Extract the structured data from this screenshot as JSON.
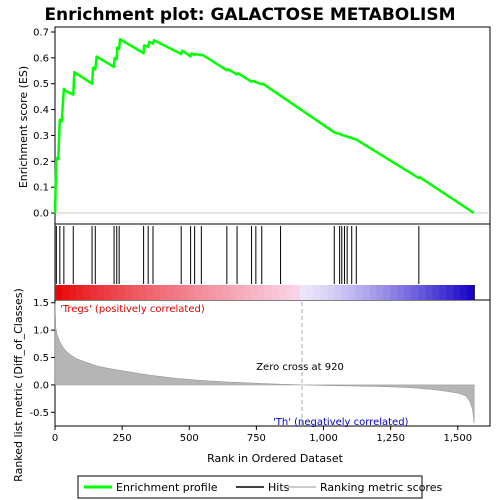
{
  "chart_data": {
    "type": "line",
    "title": "Enrichment plot: GALACTOSE METABOLISM",
    "enrichment_panel": {
      "ylabel": "Enrichment score (ES)",
      "ylim": [
        0.0,
        0.7
      ],
      "yticks": [
        0.0,
        0.1,
        0.2,
        0.3,
        0.4,
        0.5,
        0.6,
        0.7
      ],
      "series": [
        {
          "name": "Enrichment profile",
          "color": "#00ff00",
          "x": [
            0,
            5,
            12,
            18,
            25,
            33,
            40,
            68,
            72,
            138,
            142,
            150,
            155,
            220,
            222,
            230,
            232,
            239,
            242,
            330,
            332,
            347,
            351,
            365,
            369,
            470,
            474,
            505,
            509,
            520,
            524,
            545,
            549,
            640,
            644,
            678,
            682,
            732,
            736,
            748,
            752,
            770,
            774,
            1040,
            1044,
            1060,
            1068,
            1078,
            1088,
            1105,
            1122,
            1355,
            1359,
            1560
          ],
          "y": [
            0.0,
            0.212,
            0.208,
            0.36,
            0.355,
            0.48,
            0.472,
            0.458,
            0.545,
            0.5,
            0.562,
            0.556,
            0.605,
            0.565,
            0.6,
            0.595,
            0.64,
            0.635,
            0.672,
            0.618,
            0.648,
            0.643,
            0.662,
            0.655,
            0.668,
            0.615,
            0.628,
            0.606,
            0.617,
            0.611,
            0.615,
            0.61,
            0.612,
            0.552,
            0.556,
            0.536,
            0.54,
            0.508,
            0.511,
            0.506,
            0.505,
            0.498,
            0.5,
            0.312,
            0.31,
            0.306,
            0.302,
            0.299,
            0.295,
            0.29,
            0.284,
            0.135,
            0.138,
            0.0
          ]
        }
      ]
    },
    "hits_panel": {
      "legend_label": "Hits",
      "positions": [
        5,
        18,
        33,
        68,
        138,
        150,
        220,
        230,
        239,
        330,
        347,
        365,
        470,
        505,
        520,
        545,
        640,
        678,
        732,
        748,
        770,
        840,
        1040,
        1060,
        1068,
        1078,
        1088,
        1105,
        1122,
        1355
      ]
    },
    "ranking_panel": {
      "ylabel": "Ranked list metric (Diff_of_Classes)",
      "xlabel": "Rank in Ordered Dataset",
      "legend_label": "Ranking metric scores",
      "ylim": [
        -0.75,
        1.55
      ],
      "yticks": [
        -0.5,
        0.0,
        0.5,
        1.0,
        1.5
      ],
      "xlim": [
        0,
        1620
      ],
      "xticks": [
        0,
        250,
        500,
        750,
        1000,
        1250,
        1500
      ],
      "xtick_labels": [
        "0",
        "250",
        "500",
        "750",
        "1,000",
        "1,250",
        "1,500"
      ],
      "zero_cross": 920,
      "zero_cross_label": "Zero cross at 920",
      "positive_label": "'Tregs' (positively correlated)",
      "negative_label": "'Th' (negatively correlated)",
      "positive_color": "#dd0000",
      "negative_color": "#0000cc",
      "n_genes": 1561,
      "metric_curve": {
        "rank": [
          0,
          3,
          8,
          15,
          25,
          40,
          60,
          80,
          100,
          130,
          160,
          200,
          250,
          300,
          350,
          400,
          450,
          500,
          550,
          600,
          650,
          700,
          750,
          800,
          850,
          900,
          920,
          1000,
          1100,
          1200,
          1300,
          1350,
          1400,
          1450,
          1500,
          1530,
          1545,
          1555,
          1561
        ],
        "value": [
          1.5,
          1.05,
          0.92,
          0.82,
          0.72,
          0.62,
          0.54,
          0.48,
          0.44,
          0.39,
          0.34,
          0.3,
          0.26,
          0.22,
          0.18,
          0.15,
          0.12,
          0.1,
          0.08,
          0.065,
          0.05,
          0.04,
          0.03,
          0.02,
          0.012,
          0.005,
          0.0,
          -0.01,
          -0.018,
          -0.028,
          -0.045,
          -0.06,
          -0.08,
          -0.11,
          -0.15,
          -0.2,
          -0.3,
          -0.45,
          -0.7
        ]
      }
    },
    "legend": {
      "items": [
        "Enrichment profile",
        "Hits",
        "Ranking metric scores"
      ]
    }
  }
}
